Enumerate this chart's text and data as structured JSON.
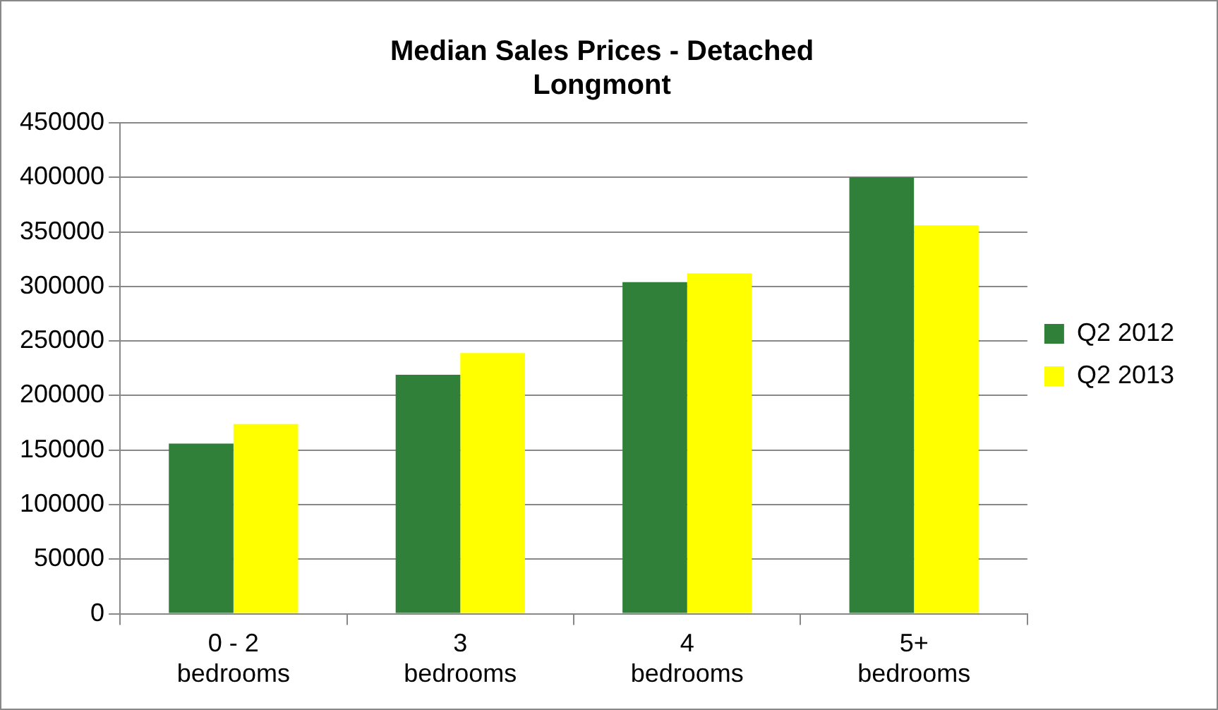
{
  "chart_data": {
    "type": "bar",
    "title": "Median Sales Prices - Detached\nLongmont",
    "categories": [
      "0 - 2 bedrooms",
      "3 bedrooms",
      "4 bedrooms",
      "5+ bedrooms"
    ],
    "series": [
      {
        "name": "Q2 2012",
        "color": "#31803a",
        "values": [
          156000,
          219000,
          304000,
          400000
        ]
      },
      {
        "name": "Q2 2013",
        "color": "#ffff00",
        "values": [
          174000,
          239000,
          312000,
          356000
        ]
      }
    ],
    "ylim": [
      0,
      450000
    ],
    "yticks": [
      0,
      50000,
      100000,
      150000,
      200000,
      250000,
      300000,
      350000,
      400000,
      450000
    ],
    "grid": "y",
    "legend": "right"
  }
}
